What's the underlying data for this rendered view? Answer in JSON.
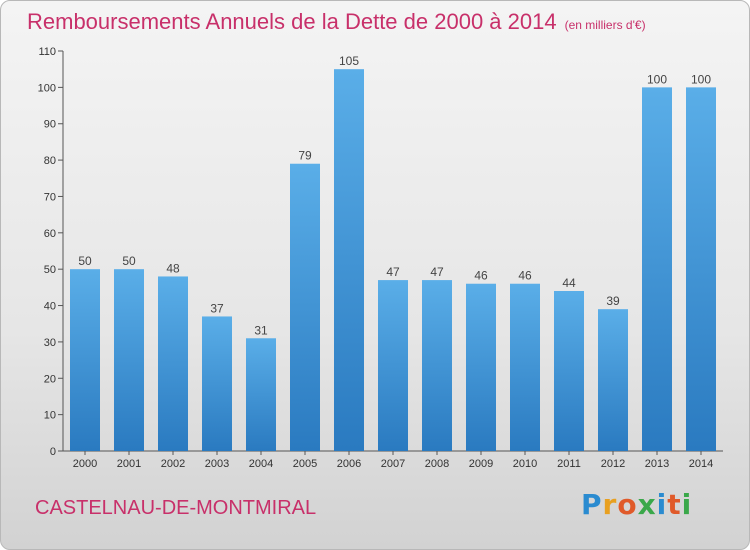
{
  "title": "Remboursements Annuels de la Dette de 2000 à 2014",
  "unit": "(en milliers d'€)",
  "commune": "CASTELNAU-DE-MONTMIRAL",
  "logo": {
    "letters": [
      "P",
      "r",
      "o",
      "x",
      "i",
      "t",
      "i"
    ],
    "colors": [
      "#2a8bd0",
      "#e8a020",
      "#e05a2a",
      "#3aa84a",
      "#2a8bd0",
      "#e05a2a",
      "#3aa84a"
    ]
  },
  "colors": {
    "title": "#c8306a",
    "bar_top": "#5aaee8",
    "bar_bottom": "#2a7ac0"
  },
  "chart_data": {
    "type": "bar",
    "categories": [
      "2000",
      "2001",
      "2002",
      "2003",
      "2004",
      "2005",
      "2006",
      "2007",
      "2008",
      "2009",
      "2010",
      "2011",
      "2012",
      "2013",
      "2014"
    ],
    "values": [
      50,
      50,
      48,
      37,
      31,
      79,
      105,
      47,
      47,
      46,
      46,
      44,
      39,
      100,
      100
    ],
    "ylim": [
      0,
      110
    ],
    "yticks": [
      0,
      10,
      20,
      30,
      40,
      50,
      60,
      70,
      80,
      90,
      100,
      110
    ],
    "xlabel": "",
    "ylabel": "",
    "grid": false,
    "data_labels": true
  }
}
